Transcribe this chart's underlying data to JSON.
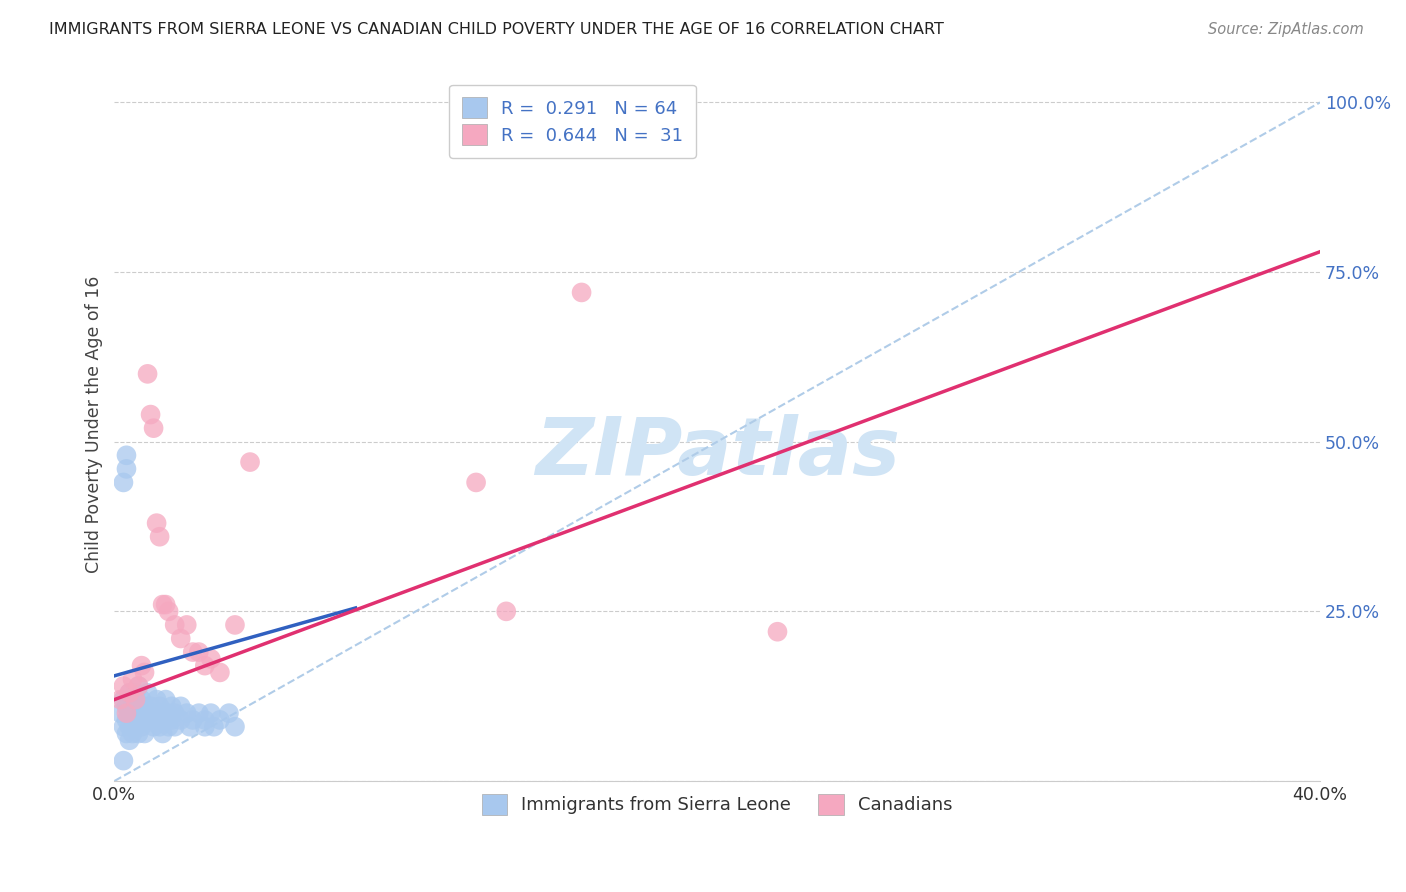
{
  "title": "IMMIGRANTS FROM SIERRA LEONE VS CANADIAN CHILD POVERTY UNDER THE AGE OF 16 CORRELATION CHART",
  "source": "Source: ZipAtlas.com",
  "xlabel_bottom": [
    "Immigrants from Sierra Leone",
    "Canadians"
  ],
  "ylabel": "Child Poverty Under the Age of 16",
  "xlim": [
    0.0,
    0.4
  ],
  "ylim": [
    0.0,
    1.05
  ],
  "ytick_vals": [
    0.0,
    0.25,
    0.5,
    0.75,
    1.0
  ],
  "xtick_vals": [
    0.0,
    0.05,
    0.1,
    0.15,
    0.2,
    0.25,
    0.3,
    0.35,
    0.4
  ],
  "legend_R1": "0.291",
  "legend_N1": "64",
  "legend_R2": "0.644",
  "legend_N2": "31",
  "blue_color": "#A8C8EE",
  "pink_color": "#F5A8C0",
  "blue_line_color": "#3060C0",
  "pink_line_color": "#E03070",
  "dashed_line_color": "#B0CCE8",
  "watermark_color": "#D0E4F5",
  "blue_line_x0": 0.0,
  "blue_line_y0": 0.155,
  "blue_line_x1": 0.08,
  "blue_line_y1": 0.255,
  "pink_line_x0": 0.0,
  "pink_line_y0": 0.12,
  "pink_line_x1": 0.4,
  "pink_line_y1": 0.78,
  "blue_scatter_x": [
    0.002,
    0.003,
    0.003,
    0.004,
    0.004,
    0.004,
    0.005,
    0.005,
    0.005,
    0.005,
    0.006,
    0.006,
    0.006,
    0.006,
    0.007,
    0.007,
    0.007,
    0.008,
    0.008,
    0.008,
    0.008,
    0.009,
    0.009,
    0.009,
    0.01,
    0.01,
    0.01,
    0.011,
    0.011,
    0.012,
    0.012,
    0.013,
    0.013,
    0.014,
    0.014,
    0.015,
    0.015,
    0.016,
    0.016,
    0.017,
    0.017,
    0.018,
    0.018,
    0.019,
    0.019,
    0.02,
    0.02,
    0.022,
    0.022,
    0.024,
    0.025,
    0.026,
    0.028,
    0.03,
    0.03,
    0.032,
    0.033,
    0.035,
    0.038,
    0.04,
    0.003,
    0.004,
    0.004,
    0.003
  ],
  "blue_scatter_y": [
    0.1,
    0.12,
    0.08,
    0.09,
    0.11,
    0.07,
    0.1,
    0.13,
    0.08,
    0.06,
    0.12,
    0.09,
    0.07,
    0.11,
    0.1,
    0.08,
    0.13,
    0.09,
    0.11,
    0.07,
    0.14,
    0.1,
    0.08,
    0.12,
    0.09,
    0.11,
    0.07,
    0.1,
    0.13,
    0.09,
    0.11,
    0.1,
    0.08,
    0.12,
    0.09,
    0.11,
    0.08,
    0.1,
    0.07,
    0.09,
    0.12,
    0.1,
    0.08,
    0.11,
    0.09,
    0.1,
    0.08,
    0.09,
    0.11,
    0.1,
    0.08,
    0.09,
    0.1,
    0.08,
    0.09,
    0.1,
    0.08,
    0.09,
    0.1,
    0.08,
    0.44,
    0.46,
    0.48,
    0.03
  ],
  "pink_scatter_x": [
    0.002,
    0.003,
    0.004,
    0.005,
    0.006,
    0.007,
    0.008,
    0.009,
    0.01,
    0.011,
    0.012,
    0.013,
    0.014,
    0.015,
    0.016,
    0.017,
    0.018,
    0.02,
    0.022,
    0.024,
    0.026,
    0.028,
    0.03,
    0.032,
    0.035,
    0.04,
    0.045,
    0.12,
    0.155,
    0.22,
    0.13
  ],
  "pink_scatter_y": [
    0.12,
    0.14,
    0.1,
    0.13,
    0.15,
    0.12,
    0.14,
    0.17,
    0.16,
    0.6,
    0.54,
    0.52,
    0.38,
    0.36,
    0.26,
    0.26,
    0.25,
    0.23,
    0.21,
    0.23,
    0.19,
    0.19,
    0.17,
    0.18,
    0.16,
    0.23,
    0.47,
    0.44,
    0.72,
    0.22,
    0.25
  ]
}
